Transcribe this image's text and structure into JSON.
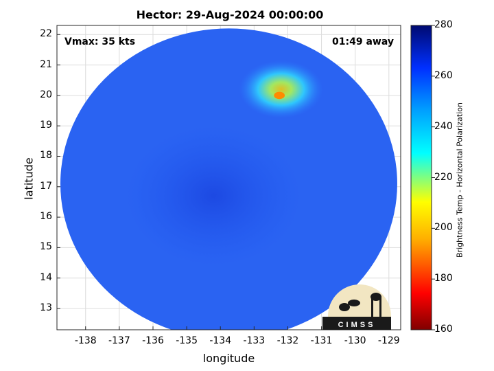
{
  "title": "Hector: 29-Aug-2024 00:00:00",
  "vmax_label": "Vmax: 35 kts",
  "time_away": "01:49 away",
  "xlabel": "longitude",
  "ylabel": "latitude",
  "colorbar_label": "Brightness Temp - Horizontal Polarization",
  "logo_text": "CIMSS",
  "chart_data": {
    "type": "heatmap",
    "title": "Hector: 29-Aug-2024 00:00:00",
    "xlabel": "longitude",
    "ylabel": "latitude",
    "xlim": [
      -138.85,
      -128.65
    ],
    "ylim": [
      12.3,
      22.3
    ],
    "xticks": [
      -138,
      -137,
      -136,
      -135,
      -134,
      -133,
      -132,
      -131,
      -130,
      -129
    ],
    "yticks": [
      13,
      14,
      15,
      16,
      17,
      18,
      19,
      20,
      21,
      22
    ],
    "colorbar": {
      "label": "Brightness Temp - Horizontal Polarization",
      "range": [
        160,
        280
      ],
      "ticks": [
        160,
        180,
        200,
        220,
        240,
        260,
        280
      ],
      "colormap": "jet"
    },
    "swath": {
      "center_lon": -133.75,
      "center_lat": 17.1,
      "radius_deg": 5.1
    },
    "background_temp": 262,
    "features": [
      {
        "name": "cold cloud cluster",
        "lon": -132.2,
        "lat": 20.2,
        "temp": 232
      },
      {
        "name": "coldest core",
        "lon": -132.25,
        "lat": 20.0,
        "temp": 198
      },
      {
        "name": "warm band",
        "lon": -134.2,
        "lat": 16.7,
        "temp": 266
      }
    ],
    "grid": true
  }
}
